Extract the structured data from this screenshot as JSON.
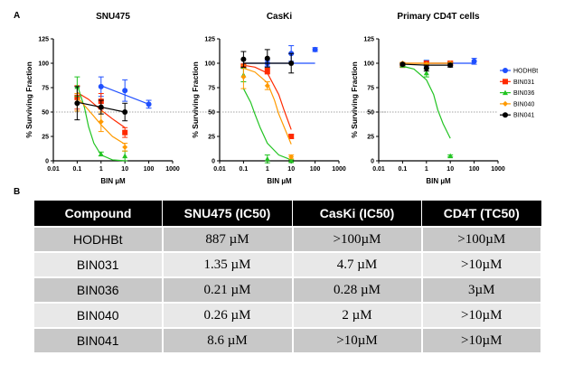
{
  "panels": {
    "a": "A",
    "b": "B"
  },
  "legend": [
    {
      "name": "HODHBt",
      "color": "#1f4fff",
      "marker": "circle"
    },
    {
      "name": "BIN031",
      "color": "#ff2a00",
      "marker": "square"
    },
    {
      "name": "BIN036",
      "color": "#22c422",
      "marker": "triangle"
    },
    {
      "name": "BIN040",
      "color": "#ff9a00",
      "marker": "diamond"
    },
    {
      "name": "BIN041",
      "color": "#000000",
      "marker": "circle"
    }
  ],
  "chart_data": [
    {
      "type": "scatter",
      "title": "SNU475",
      "xlabel": "BIN µM",
      "ylabel": "% Surviving Fraction",
      "xscale": "log",
      "xlim": [
        0.01,
        1000
      ],
      "ylim": [
        0,
        125
      ],
      "xticks": [
        "0.01",
        "0.1",
        "1",
        "10",
        "100",
        "1000"
      ],
      "yticks": [
        "0",
        "25",
        "50",
        "75",
        "100",
        "125"
      ],
      "reference_line": 50,
      "series": [
        {
          "name": "HODHBt",
          "points": [
            [
              1,
              76,
              10
            ],
            [
              10,
              72,
              11
            ],
            [
              100,
              58,
              4
            ]
          ],
          "fit": [
            [
              1,
              77
            ],
            [
              100,
              58
            ]
          ]
        },
        {
          "name": "BIN031",
          "points": [
            [
              0.1,
              65,
              12
            ],
            [
              1,
              61,
              8
            ],
            [
              10,
              29,
              5
            ]
          ],
          "fit": [
            [
              0.1,
              70
            ],
            [
              0.3,
              63
            ],
            [
              1,
              52
            ],
            [
              3,
              43
            ],
            [
              10,
              34
            ]
          ]
        },
        {
          "name": "BIN036",
          "points": [
            [
              0.1,
              76,
              10
            ],
            [
              1,
              7,
              2
            ],
            [
              10,
              5,
              5
            ]
          ],
          "fit": [
            [
              0.1,
              78
            ],
            [
              0.2,
              55
            ],
            [
              0.3,
              35
            ],
            [
              0.5,
              18
            ],
            [
              1,
              6
            ],
            [
              3,
              1
            ],
            [
              10,
              0
            ]
          ]
        },
        {
          "name": "BIN040",
          "points": [
            [
              0.1,
              60,
              9
            ],
            [
              1,
              40,
              10
            ],
            [
              10,
              14,
              4
            ]
          ],
          "fit": [
            [
              0.1,
              65
            ],
            [
              0.3,
              52
            ],
            [
              1,
              37
            ],
            [
              3,
              25
            ],
            [
              10,
              17
            ]
          ]
        },
        {
          "name": "BIN041",
          "points": [
            [
              0.1,
              59,
              17
            ],
            [
              1,
              55,
              7
            ],
            [
              10,
              50,
              9
            ]
          ],
          "fit": [
            [
              0.1,
              60
            ],
            [
              10,
              50
            ]
          ]
        }
      ]
    },
    {
      "type": "scatter",
      "title": "CasKi",
      "xlabel": "BIN µM",
      "ylabel": "% Surviving Fraction",
      "xscale": "log",
      "xlim": [
        0.01,
        1000
      ],
      "ylim": [
        0,
        125
      ],
      "xticks": [
        "0.01",
        "0.1",
        "1",
        "10",
        "100",
        "1000"
      ],
      "yticks": [
        "0",
        "25",
        "50",
        "75",
        "100",
        "125"
      ],
      "reference_line": 50,
      "series": [
        {
          "name": "HODHBt",
          "points": [
            [
              1,
              100,
              3
            ],
            [
              10,
              110,
              8
            ],
            [
              100,
              114,
              2
            ]
          ],
          "fit": [
            [
              0.1,
              100
            ],
            [
              100,
              100
            ]
          ]
        },
        {
          "name": "BIN031",
          "points": [
            [
              0.1,
              97,
              2
            ],
            [
              1,
              92,
              3
            ],
            [
              10,
              25,
              2
            ]
          ],
          "fit": [
            [
              0.1,
              98
            ],
            [
              0.3,
              96
            ],
            [
              1,
              90
            ],
            [
              3,
              68
            ],
            [
              5,
              52
            ],
            [
              10,
              32
            ]
          ]
        },
        {
          "name": "BIN036",
          "points": [
            [
              0.1,
              88,
              7
            ],
            [
              1,
              2,
              4
            ],
            [
              10,
              0,
              1
            ]
          ],
          "fit": [
            [
              0.1,
              74
            ],
            [
              0.2,
              60
            ],
            [
              0.3,
              48
            ],
            [
              0.5,
              34
            ],
            [
              1,
              18
            ],
            [
              3,
              6
            ],
            [
              10,
              1
            ]
          ]
        },
        {
          "name": "BIN040",
          "points": [
            [
              0.1,
              86,
              12
            ],
            [
              1,
              77,
              4
            ],
            [
              10,
              4,
              2
            ]
          ],
          "fit": [
            [
              0.1,
              95
            ],
            [
              0.3,
              91
            ],
            [
              1,
              80
            ],
            [
              2,
              62
            ],
            [
              3,
              48
            ],
            [
              10,
              17
            ]
          ]
        },
        {
          "name": "BIN041",
          "points": [
            [
              0.1,
              104,
              8
            ],
            [
              1,
              105,
              9
            ],
            [
              10,
              100,
              10
            ]
          ],
          "fit": [
            [
              0.1,
              100
            ],
            [
              10,
              100
            ]
          ]
        }
      ]
    },
    {
      "type": "scatter",
      "title": "Primary CD4T cells",
      "xlabel": "BIN µM",
      "ylabel": "% Surviving Fraction",
      "xscale": "log",
      "xlim": [
        0.01,
        1000
      ],
      "ylim": [
        0,
        125
      ],
      "xticks": [
        "0.01",
        "0.1",
        "1",
        "10",
        "100",
        "1000"
      ],
      "yticks": [
        "0",
        "25",
        "50",
        "75",
        "100",
        "125"
      ],
      "reference_line": 50,
      "legend": "right",
      "series": [
        {
          "name": "HODHBt",
          "points": [
            [
              1,
              100,
              3
            ],
            [
              10,
              99,
              2
            ],
            [
              100,
              102,
              3
            ]
          ],
          "fit": [
            [
              1,
              100
            ],
            [
              100,
              100
            ]
          ]
        },
        {
          "name": "BIN031",
          "points": [
            [
              0.1,
              98,
              2
            ],
            [
              1,
              100,
              2
            ],
            [
              10,
              100,
              2
            ]
          ],
          "fit": [
            [
              0.1,
              100
            ],
            [
              10,
              100
            ]
          ]
        },
        {
          "name": "BIN036",
          "points": [
            [
              0.1,
              98,
              2
            ],
            [
              1,
              90,
              4
            ],
            [
              10,
              5,
              1
            ]
          ],
          "fit": [
            [
              0.1,
              97
            ],
            [
              0.3,
              94
            ],
            [
              1,
              83
            ],
            [
              2,
              68
            ],
            [
              3,
              52
            ],
            [
              5,
              38
            ],
            [
              10,
              23
            ]
          ]
        },
        {
          "name": "BIN040",
          "points": [
            [
              0.1,
              100,
              1
            ],
            [
              1,
              99,
              1
            ],
            [
              10,
              100,
              1
            ]
          ],
          "fit": [
            [
              0.1,
              100
            ],
            [
              10,
              100
            ]
          ]
        },
        {
          "name": "BIN041",
          "points": [
            [
              0.1,
              99,
              1
            ],
            [
              1,
              95,
              3
            ],
            [
              10,
              98,
              2
            ]
          ],
          "fit": [
            [
              0.1,
              99
            ],
            [
              1,
              98
            ],
            [
              10,
              98
            ]
          ]
        }
      ]
    }
  ],
  "table": {
    "headers": [
      "Compound",
      "SNU475 (IC50)",
      "CasKi (IC50)",
      "CD4T (TC50)"
    ],
    "rows": [
      [
        "HODHBt",
        "887 µM",
        ">100µM",
        ">100µM"
      ],
      [
        "BIN031",
        "1.35 µM",
        "4.7 µM",
        ">10µM"
      ],
      [
        "BIN036",
        "0.21 µM",
        "0.28 µM",
        "3µM"
      ],
      [
        "BIN040",
        "0.26 µM",
        "2 µM",
        ">10µM"
      ],
      [
        "BIN041",
        "8.6 µM",
        ">10µM",
        ">10µM"
      ]
    ]
  }
}
